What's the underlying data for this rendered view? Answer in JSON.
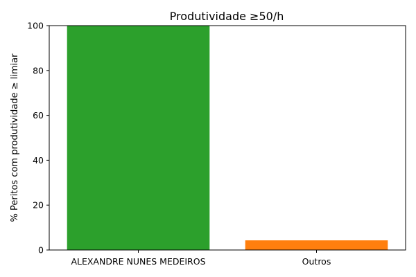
{
  "chart_data": {
    "type": "bar",
    "title": "Produtividade ≥50/h",
    "xlabel": "",
    "ylabel": "% Peritos com produtividade ≥ limiar",
    "categories": [
      "ALEXANDRE NUNES MEDEIROS",
      "Outros"
    ],
    "values": [
      100,
      4.3
    ],
    "colors": [
      "#2ca02c",
      "#ff7f0e"
    ],
    "ylim": [
      0,
      100
    ],
    "yticks": [
      0,
      20,
      40,
      60,
      80,
      100
    ],
    "grid": false,
    "legend": null
  }
}
